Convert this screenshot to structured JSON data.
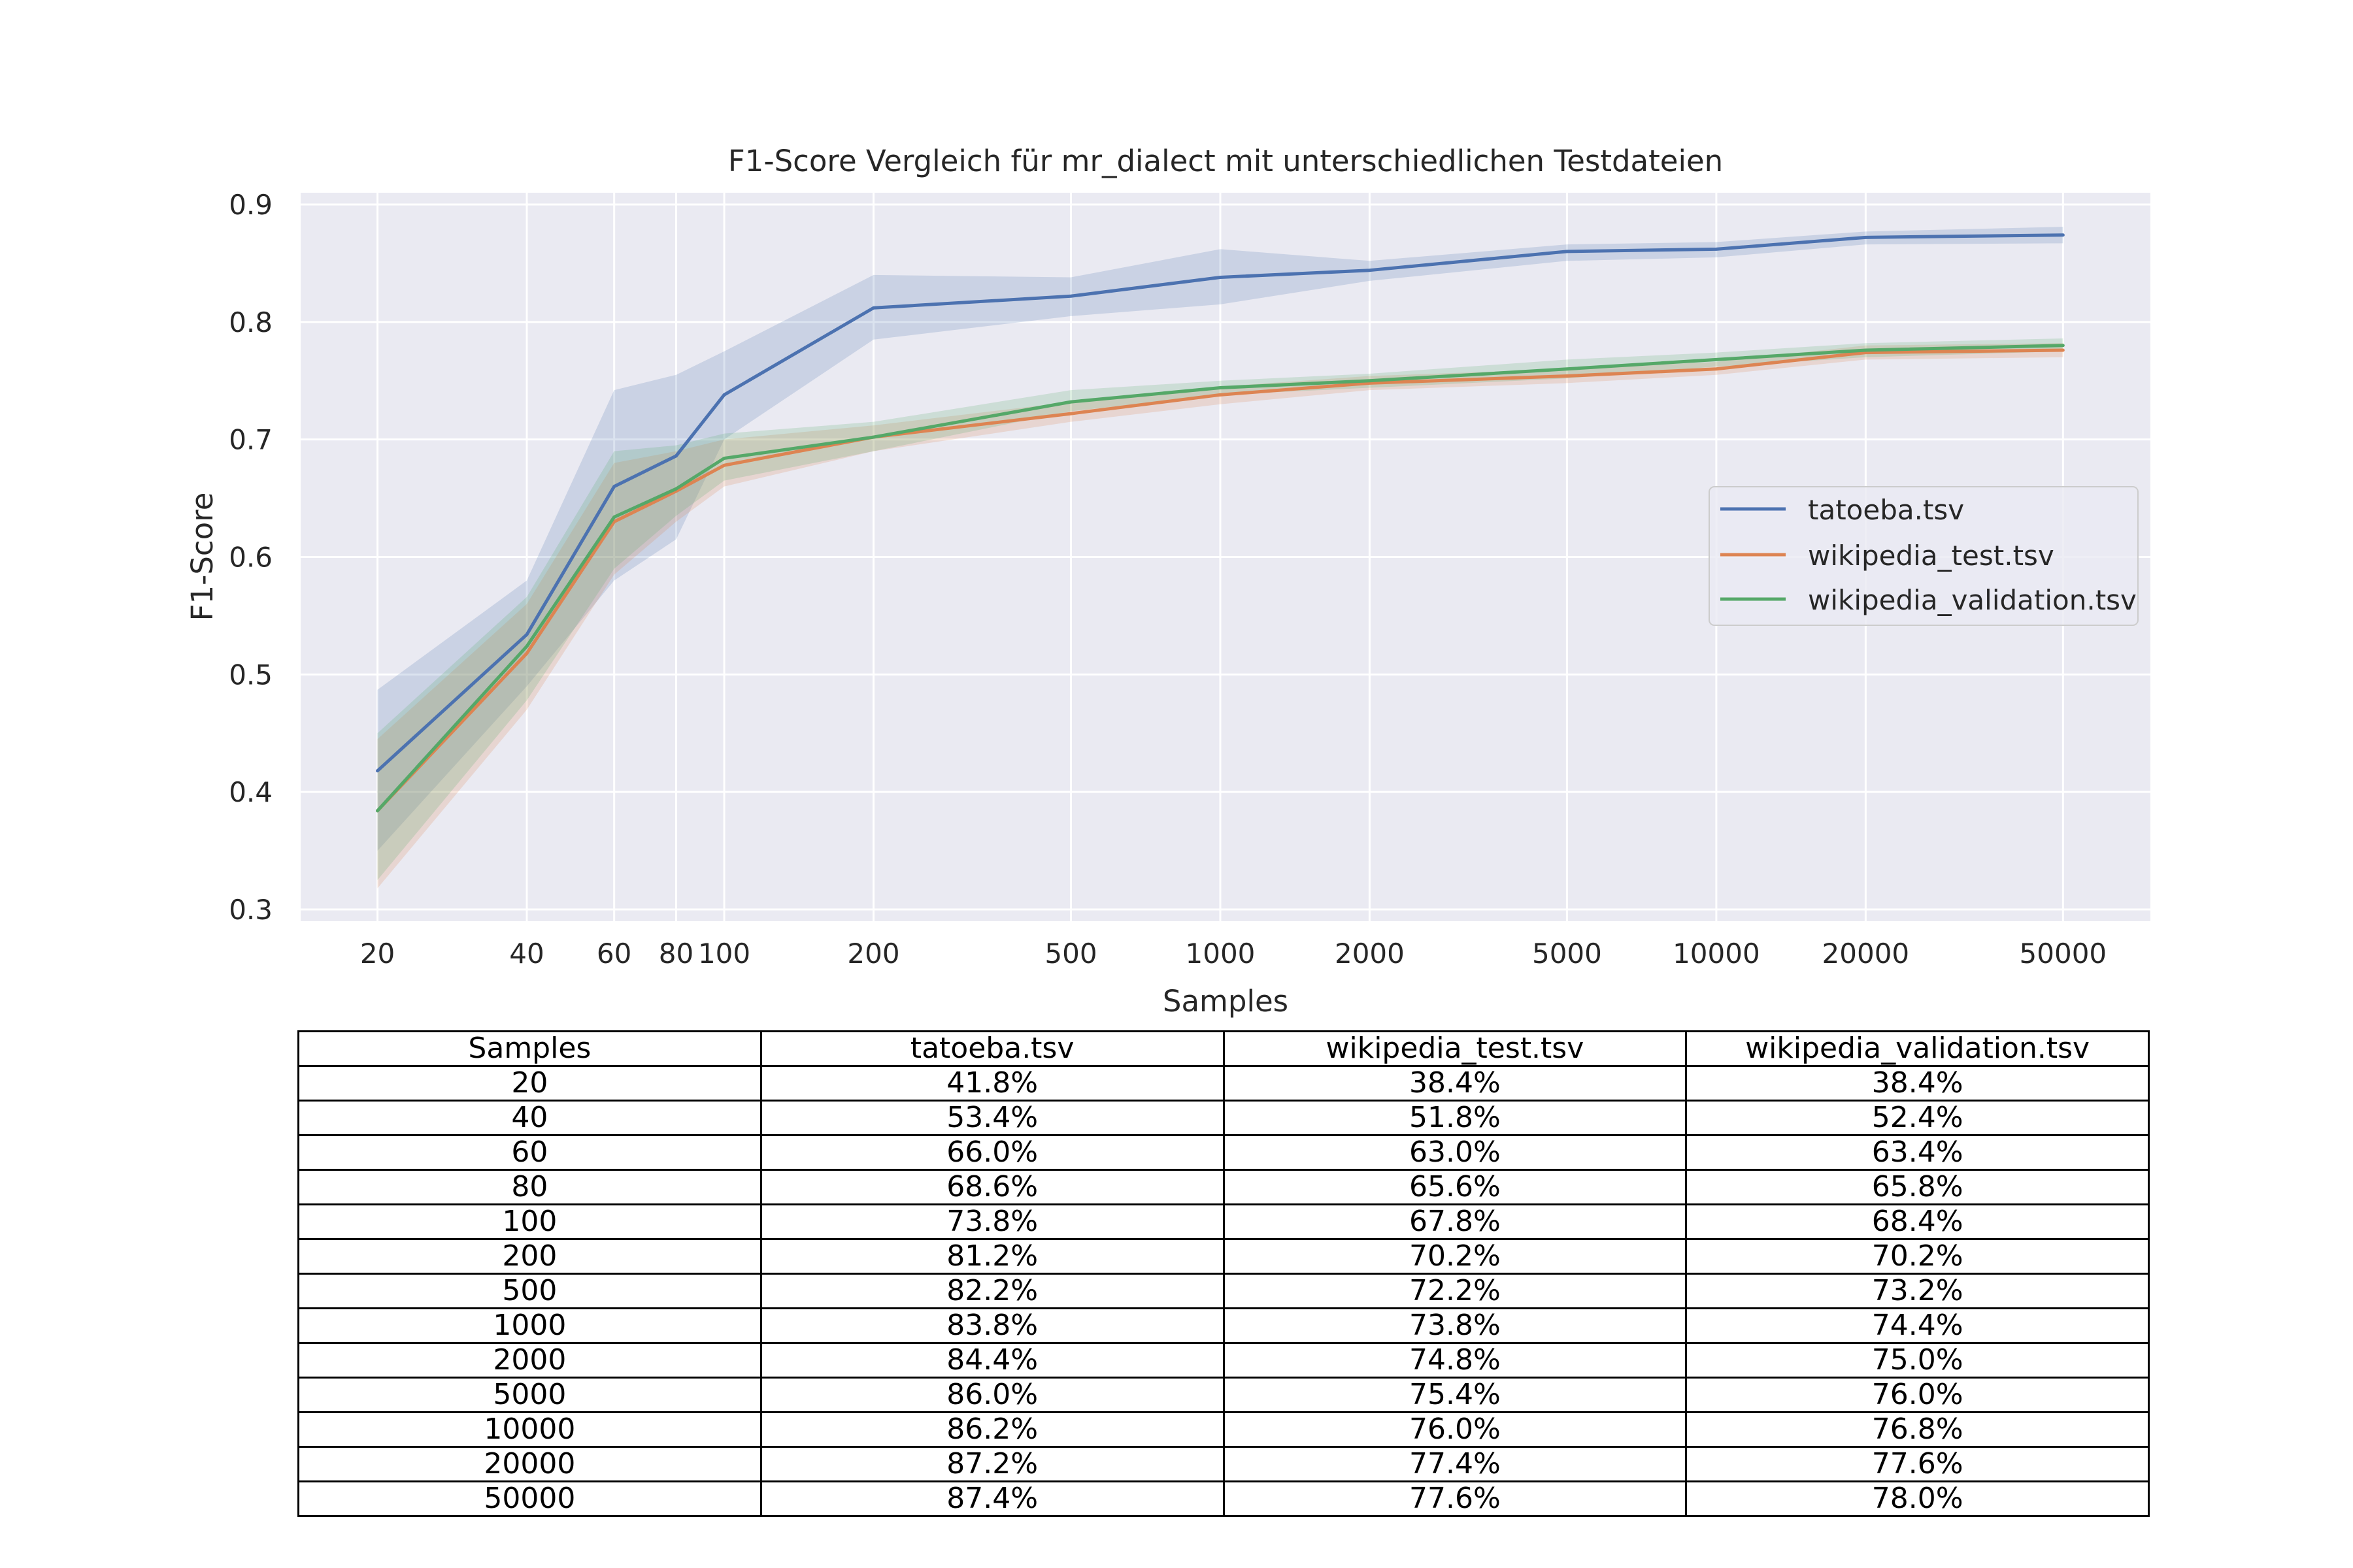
{
  "chart_data": {
    "type": "line",
    "title": "F1-Score Vergleich für mr_dialect mit unterschiedlichen Testdateien",
    "xlabel": "Samples",
    "ylabel": "F1-Score",
    "x_scale": "log",
    "x": [
      20,
      40,
      60,
      80,
      100,
      200,
      500,
      1000,
      2000,
      5000,
      10000,
      20000,
      50000
    ],
    "x_tick_labels": [
      "20",
      "40",
      "60",
      "80",
      "100",
      "200",
      "500",
      "1000",
      "2000",
      "5000",
      "10000",
      "20000",
      "50000"
    ],
    "xlim": [
      14,
      75000
    ],
    "ylim": [
      0.29,
      0.91
    ],
    "y_ticks": [
      0.3,
      0.4,
      0.5,
      0.6,
      0.7,
      0.8,
      0.9
    ],
    "grid": true,
    "legend_position": "right",
    "series": [
      {
        "name": "tatoeba.tsv",
        "color": "#4c72b0",
        "values": [
          0.418,
          0.534,
          0.66,
          0.686,
          0.738,
          0.812,
          0.822,
          0.838,
          0.844,
          0.86,
          0.862,
          0.872,
          0.874
        ],
        "lower": [
          0.35,
          0.49,
          0.58,
          0.615,
          0.7,
          0.785,
          0.805,
          0.815,
          0.835,
          0.852,
          0.855,
          0.866,
          0.867
        ],
        "upper": [
          0.487,
          0.58,
          0.742,
          0.755,
          0.775,
          0.84,
          0.838,
          0.862,
          0.852,
          0.866,
          0.868,
          0.877,
          0.881
        ]
      },
      {
        "name": "wikipedia_test.tsv",
        "color": "#dd8452",
        "values": [
          0.384,
          0.518,
          0.63,
          0.656,
          0.678,
          0.702,
          0.722,
          0.738,
          0.748,
          0.754,
          0.76,
          0.774,
          0.776
        ],
        "lower": [
          0.318,
          0.47,
          0.585,
          0.63,
          0.66,
          0.69,
          0.715,
          0.73,
          0.742,
          0.748,
          0.755,
          0.768,
          0.77
        ],
        "upper": [
          0.445,
          0.56,
          0.68,
          0.69,
          0.7,
          0.712,
          0.732,
          0.745,
          0.754,
          0.76,
          0.766,
          0.78,
          0.782
        ]
      },
      {
        "name": "wikipedia_validation.tsv",
        "color": "#55a868",
        "values": [
          0.384,
          0.524,
          0.634,
          0.658,
          0.684,
          0.702,
          0.732,
          0.744,
          0.75,
          0.76,
          0.768,
          0.776,
          0.78
        ],
        "lower": [
          0.325,
          0.478,
          0.59,
          0.635,
          0.665,
          0.69,
          0.724,
          0.738,
          0.744,
          0.752,
          0.762,
          0.77,
          0.775
        ],
        "upper": [
          0.45,
          0.566,
          0.69,
          0.695,
          0.705,
          0.715,
          0.742,
          0.75,
          0.756,
          0.768,
          0.774,
          0.782,
          0.786
        ]
      }
    ]
  },
  "table": {
    "columns": [
      "Samples",
      "tatoeba.tsv",
      "wikipedia_test.tsv",
      "wikipedia_validation.tsv"
    ],
    "rows": [
      [
        "20",
        "41.8%",
        "38.4%",
        "38.4%"
      ],
      [
        "40",
        "53.4%",
        "51.8%",
        "52.4%"
      ],
      [
        "60",
        "66.0%",
        "63.0%",
        "63.4%"
      ],
      [
        "80",
        "68.6%",
        "65.6%",
        "65.8%"
      ],
      [
        "100",
        "73.8%",
        "67.8%",
        "68.4%"
      ],
      [
        "200",
        "81.2%",
        "70.2%",
        "70.2%"
      ],
      [
        "500",
        "82.2%",
        "72.2%",
        "73.2%"
      ],
      [
        "1000",
        "83.8%",
        "73.8%",
        "74.4%"
      ],
      [
        "2000",
        "84.4%",
        "74.8%",
        "75.0%"
      ],
      [
        "5000",
        "86.0%",
        "75.4%",
        "76.0%"
      ],
      [
        "10000",
        "86.2%",
        "76.0%",
        "76.8%"
      ],
      [
        "20000",
        "87.2%",
        "77.4%",
        "77.6%"
      ],
      [
        "50000",
        "87.4%",
        "77.6%",
        "78.0%"
      ]
    ]
  }
}
